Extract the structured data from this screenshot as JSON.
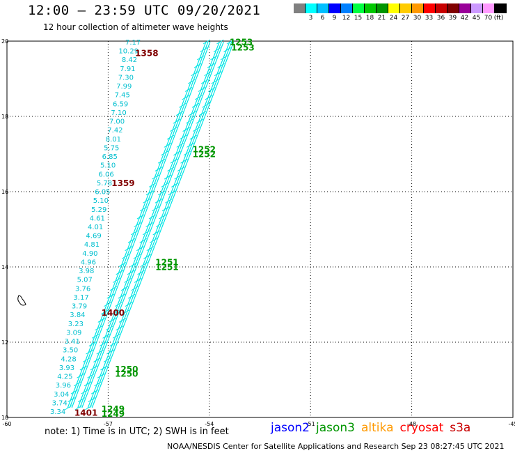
{
  "header": {
    "title": "12:00 – 23:59 UTC 09/20/2021",
    "subtitle": "12 hour collection of altimeter wave heights"
  },
  "legend": {
    "colors": [
      "#808080",
      "#00ffff",
      "#00bfff",
      "#0000ff",
      "#0080ff",
      "#00ff40",
      "#00c800",
      "#009600",
      "#ffff00",
      "#ffcc00",
      "#ff9900",
      "#ff0000",
      "#c80000",
      "#800000",
      "#990099",
      "#cc99ff",
      "#ff99ff",
      "#000000"
    ],
    "labels": [
      "3",
      "6",
      "9",
      "12",
      "15",
      "18",
      "21",
      "24",
      "27",
      "30",
      "33",
      "36",
      "39",
      "42",
      "45",
      "70"
    ],
    "unit": "(ft)"
  },
  "map": {
    "lon_range": [
      -60,
      -45
    ],
    "lat_range": [
      10,
      20
    ],
    "lon_ticks": [
      "-60",
      "-57",
      "-54",
      "-51",
      "-48",
      "-45"
    ],
    "lat_ticks": [
      "20",
      "18",
      "16",
      "14",
      "12",
      "10"
    ],
    "track_color": "#00e5e5",
    "swh_labels": [
      "7.17",
      "10.29",
      "8.42",
      "7.91",
      "7.30",
      "7.99",
      "7.45",
      "6.59",
      "7.10",
      "7.00",
      "7.42",
      "8.01",
      "5.75",
      "6.85",
      "5.10",
      "6.06",
      "5.78",
      "6.05",
      "5.10",
      "5.29",
      "4.61",
      "4.01",
      "4.69",
      "4.81",
      "4.90",
      "4.96",
      "3.98",
      "5.07",
      "3.76",
      "3.17",
      "3.79",
      "3.84",
      "3.23",
      "3.09",
      "3.41",
      "3.50",
      "4.28",
      "3.93",
      "4.25",
      "3.96",
      "3.04",
      "3.74",
      "3.34"
    ],
    "time_labels": [
      {
        "text": "1358",
        "lon": -56.2,
        "lat": 19.6,
        "color": "#800000"
      },
      {
        "text": "1359",
        "lon": -56.9,
        "lat": 16.15,
        "color": "#800000"
      },
      {
        "text": "1400",
        "lon": -57.2,
        "lat": 12.7,
        "color": "#800000"
      },
      {
        "text": "1401",
        "lon": -58.0,
        "lat": 10.05,
        "color": "#800000"
      },
      {
        "text": "1253",
        "lon": -53.4,
        "lat": 19.9,
        "color": "#009600"
      },
      {
        "text": "1253",
        "lon": -53.35,
        "lat": 19.75,
        "color": "#009600"
      },
      {
        "text": "1252",
        "lon": -54.5,
        "lat": 17.05,
        "color": "#009600"
      },
      {
        "text": "1252",
        "lon": -54.5,
        "lat": 16.92,
        "color": "#009600"
      },
      {
        "text": "1251",
        "lon": -55.6,
        "lat": 14.05,
        "color": "#009600"
      },
      {
        "text": "1251",
        "lon": -55.6,
        "lat": 13.92,
        "color": "#009600"
      },
      {
        "text": "1250",
        "lon": -56.8,
        "lat": 11.2,
        "color": "#009600"
      },
      {
        "text": "1250",
        "lon": -56.8,
        "lat": 11.08,
        "color": "#009600"
      },
      {
        "text": "1249",
        "lon": -57.2,
        "lat": 10.15,
        "color": "#009600"
      },
      {
        "text": "1249",
        "lon": -57.2,
        "lat": 10.02,
        "color": "#009600"
      }
    ]
  },
  "footer": {
    "note": "note:  1) Time is in UTC;  2) SWH is in feet",
    "satellites": [
      {
        "name": "jason2",
        "color": "#0000ff"
      },
      {
        "name": "jason3",
        "color": "#009600"
      },
      {
        "name": "altika",
        "color": "#ff9900"
      },
      {
        "name": "cryosat",
        "color": "#ff0000"
      },
      {
        "name": "s3a",
        "color": "#c80000"
      }
    ],
    "credit": "NOAA/NESDIS Center for Satellite Applications and Research      Sep 23 08:27:45 UTC 2021"
  }
}
